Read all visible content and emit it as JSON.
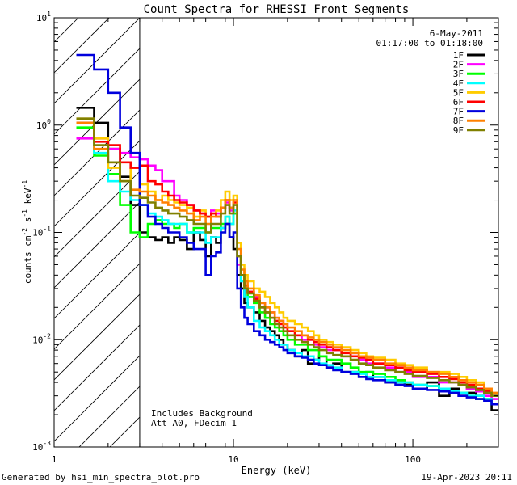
{
  "chart_data": {
    "type": "line",
    "title": "Count Spectra for RHESSI Front Segments",
    "xlabel": "Energy (keV)",
    "ylabel": "counts cm^-2 s^-1 keV^-1",
    "xscale": "log",
    "yscale": "log",
    "xlim": [
      1,
      300
    ],
    "ylim": [
      0.001,
      10
    ],
    "x_ticks": [
      {
        "value": 1,
        "label": "1"
      },
      {
        "value": 10,
        "label": "10"
      },
      {
        "value": 100,
        "label": "100"
      }
    ],
    "y_ticks": [
      {
        "value": 0.001,
        "base": "10",
        "exp": "-3"
      },
      {
        "value": 0.01,
        "base": "10",
        "exp": "-2"
      },
      {
        "value": 0.1,
        "base": "10",
        "exp": "-1"
      },
      {
        "value": 1,
        "base": "10",
        "exp": "0"
      },
      {
        "value": 10,
        "base": "10",
        "exp": "1"
      }
    ],
    "date_label": "6-May-2011",
    "time_range_label": "01:17:00 to 01:18:00",
    "annotation_lines": [
      "Includes Background",
      "Att A0, FDecim 1"
    ],
    "footer_left": "Generated by hsi_min_spectra_plot.pro",
    "footer_right": "19-Apr-2023 20:11",
    "background_region_keV": [
      1,
      3
    ],
    "bin_edges_keV": [
      1,
      1.33,
      1.67,
      2,
      2.33,
      2.67,
      3,
      3.33,
      3.67,
      4,
      4.33,
      4.67,
      5,
      5.5,
      6,
      6.5,
      7,
      7.5,
      8,
      8.5,
      9,
      9.5,
      10,
      10.5,
      11,
      11.5,
      12,
      13,
      14,
      15,
      16,
      17,
      18,
      19,
      20,
      22,
      24,
      26,
      28,
      30,
      33,
      36,
      40,
      45,
      50,
      55,
      60,
      70,
      80,
      90,
      100,
      120,
      140,
      160,
      180,
      200,
      225,
      250,
      275,
      300
    ],
    "series": [
      {
        "name": "1F",
        "color": "#000000",
        "values": [
          null,
          1.45,
          1.05,
          0.6,
          0.33,
          0.18,
          0.1,
          0.09,
          0.085,
          0.09,
          0.08,
          0.09,
          0.085,
          0.07,
          0.1,
          0.085,
          0.06,
          0.09,
          0.08,
          0.11,
          0.12,
          0.09,
          0.07,
          0.04,
          0.03,
          0.022,
          0.02,
          0.018,
          0.015,
          0.013,
          0.012,
          0.011,
          0.01,
          0.009,
          0.008,
          0.007,
          0.008,
          0.006,
          0.0065,
          0.007,
          0.0055,
          0.006,
          0.005,
          0.005,
          0.0045,
          0.005,
          0.0045,
          0.004,
          0.004,
          0.0038,
          0.0035,
          0.004,
          0.003,
          0.0035,
          0.003,
          0.0032,
          0.003,
          0.0028,
          0.0022
        ]
      },
      {
        "name": "2F",
        "color": "#ff00ff",
        "values": [
          null,
          0.75,
          0.75,
          0.6,
          0.55,
          0.5,
          0.48,
          0.42,
          0.38,
          0.3,
          0.3,
          0.22,
          0.2,
          0.18,
          0.16,
          0.15,
          0.14,
          0.16,
          0.15,
          0.17,
          0.19,
          0.16,
          0.15,
          0.05,
          0.035,
          0.03,
          0.028,
          0.025,
          0.022,
          0.02,
          0.018,
          0.016,
          0.015,
          0.014,
          0.012,
          0.011,
          0.01,
          0.01,
          0.009,
          0.0085,
          0.008,
          0.008,
          0.007,
          0.0075,
          0.0065,
          0.006,
          0.006,
          0.0055,
          0.005,
          0.005,
          0.0045,
          0.0045,
          0.004,
          0.004,
          0.0038,
          0.0035,
          0.0033,
          0.003,
          0.0028
        ]
      },
      {
        "name": "3F",
        "color": "#00ff00",
        "values": [
          null,
          0.95,
          0.52,
          0.35,
          0.18,
          0.1,
          0.09,
          0.12,
          0.13,
          0.12,
          0.12,
          0.11,
          0.12,
          0.1,
          0.11,
          0.11,
          0.1,
          0.11,
          0.11,
          0.12,
          0.14,
          0.12,
          0.15,
          0.06,
          0.04,
          0.03,
          0.025,
          0.022,
          0.018,
          0.016,
          0.014,
          0.013,
          0.012,
          0.011,
          0.01,
          0.009,
          0.009,
          0.008,
          0.008,
          0.007,
          0.0065,
          0.0065,
          0.006,
          0.0055,
          0.005,
          0.005,
          0.0048,
          0.0045,
          0.0042,
          0.004,
          0.0038,
          0.0037,
          0.0035,
          0.0033,
          0.0032,
          0.003,
          0.0028,
          0.0028,
          0.0025
        ]
      },
      {
        "name": "4F",
        "color": "#00ffff",
        "values": [
          null,
          1.05,
          0.55,
          0.3,
          0.24,
          0.2,
          0.18,
          0.15,
          0.14,
          0.13,
          0.12,
          0.12,
          0.12,
          0.1,
          0.1,
          0.1,
          0.08,
          0.09,
          0.09,
          0.11,
          0.14,
          0.12,
          0.16,
          0.06,
          0.035,
          0.025,
          0.02,
          0.015,
          0.013,
          0.012,
          0.011,
          0.01,
          0.009,
          0.009,
          0.008,
          0.0075,
          0.007,
          0.007,
          0.0065,
          0.006,
          0.0058,
          0.0055,
          0.005,
          0.005,
          0.0048,
          0.0045,
          0.0045,
          0.0042,
          0.004,
          0.004,
          0.0038,
          0.0037,
          0.0035,
          0.0033,
          0.0032,
          0.003,
          0.003,
          0.0028,
          0.0025
        ]
      },
      {
        "name": "5F",
        "color": "#ffcc00",
        "values": [
          null,
          1.15,
          0.75,
          0.4,
          0.3,
          0.4,
          0.28,
          0.24,
          0.2,
          0.22,
          0.2,
          0.19,
          0.18,
          0.17,
          0.14,
          0.16,
          0.14,
          0.15,
          0.16,
          0.2,
          0.24,
          0.2,
          0.22,
          0.08,
          0.05,
          0.04,
          0.035,
          0.03,
          0.028,
          0.025,
          0.022,
          0.02,
          0.018,
          0.016,
          0.015,
          0.014,
          0.013,
          0.012,
          0.011,
          0.01,
          0.0095,
          0.009,
          0.0085,
          0.008,
          0.0075,
          0.007,
          0.0068,
          0.0065,
          0.006,
          0.0058,
          0.0055,
          0.005,
          0.005,
          0.0048,
          0.0045,
          0.0042,
          0.004,
          0.0035,
          0.003
        ]
      },
      {
        "name": "6F",
        "color": "#ff0000",
        "values": [
          null,
          1.05,
          0.7,
          0.65,
          0.45,
          0.4,
          0.42,
          0.3,
          0.28,
          0.24,
          0.22,
          0.2,
          0.19,
          0.18,
          0.16,
          0.15,
          0.14,
          0.15,
          0.14,
          0.17,
          0.2,
          0.17,
          0.19,
          0.06,
          0.04,
          0.032,
          0.028,
          0.024,
          0.02,
          0.018,
          0.016,
          0.015,
          0.014,
          0.013,
          0.012,
          0.011,
          0.011,
          0.01,
          0.0095,
          0.009,
          0.0085,
          0.008,
          0.0075,
          0.007,
          0.0068,
          0.0065,
          0.006,
          0.0058,
          0.0055,
          0.0052,
          0.005,
          0.0048,
          0.0045,
          0.0043,
          0.004,
          0.0038,
          0.0035,
          0.0033,
          0.003
        ]
      },
      {
        "name": "7F",
        "color": "#0000dd",
        "values": [
          null,
          4.5,
          3.3,
          2.0,
          0.95,
          0.55,
          0.18,
          0.14,
          0.12,
          0.11,
          0.1,
          0.1,
          0.09,
          0.08,
          0.07,
          0.07,
          0.04,
          0.06,
          0.065,
          0.1,
          0.12,
          0.09,
          0.1,
          0.03,
          0.02,
          0.016,
          0.014,
          0.012,
          0.011,
          0.01,
          0.0095,
          0.009,
          0.0085,
          0.008,
          0.0075,
          0.007,
          0.0068,
          0.0065,
          0.006,
          0.0058,
          0.0055,
          0.0052,
          0.005,
          0.0048,
          0.0045,
          0.0043,
          0.0042,
          0.004,
          0.0038,
          0.0037,
          0.0035,
          0.0034,
          0.0033,
          0.0032,
          0.003,
          0.0029,
          0.0028,
          0.0027,
          0.0025
        ]
      },
      {
        "name": "8F",
        "color": "#ff8000",
        "values": [
          null,
          1.05,
          0.6,
          0.45,
          0.3,
          0.25,
          0.24,
          0.22,
          0.2,
          0.19,
          0.18,
          0.17,
          0.16,
          0.15,
          0.13,
          0.14,
          0.12,
          0.14,
          0.14,
          0.17,
          0.2,
          0.17,
          0.2,
          0.07,
          0.045,
          0.035,
          0.03,
          0.026,
          0.022,
          0.02,
          0.018,
          0.016,
          0.015,
          0.014,
          0.013,
          0.012,
          0.011,
          0.0105,
          0.01,
          0.0095,
          0.009,
          0.0085,
          0.008,
          0.0075,
          0.007,
          0.0068,
          0.0065,
          0.006,
          0.0058,
          0.0055,
          0.0052,
          0.005,
          0.0048,
          0.0045,
          0.0042,
          0.004,
          0.0038,
          0.0035,
          0.0032
        ]
      },
      {
        "name": "9F",
        "color": "#808000",
        "values": [
          null,
          1.15,
          0.65,
          0.45,
          0.3,
          0.22,
          0.21,
          0.19,
          0.17,
          0.16,
          0.15,
          0.15,
          0.14,
          0.13,
          0.12,
          0.12,
          0.1,
          0.12,
          0.12,
          0.15,
          0.18,
          0.15,
          0.18,
          0.06,
          0.04,
          0.03,
          0.027,
          0.023,
          0.02,
          0.018,
          0.016,
          0.014,
          0.013,
          0.012,
          0.011,
          0.01,
          0.0095,
          0.009,
          0.0085,
          0.008,
          0.0075,
          0.0072,
          0.007,
          0.0065,
          0.006,
          0.0058,
          0.0055,
          0.0052,
          0.005,
          0.0048,
          0.0046,
          0.0044,
          0.0042,
          0.004,
          0.0038,
          0.0036,
          0.0034,
          0.0032,
          0.003
        ]
      }
    ]
  }
}
